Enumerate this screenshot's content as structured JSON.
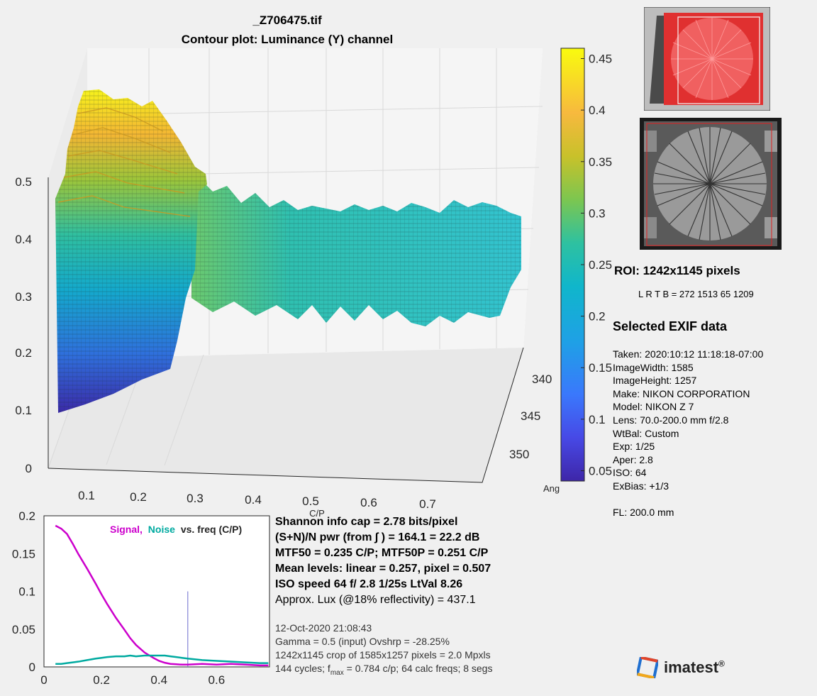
{
  "header": {
    "title": "_Z706475.tif",
    "subtitle": "Contour plot:  Luminance (Y) channel"
  },
  "surface_plot": {
    "z_ticks": [
      "0",
      "0.1",
      "0.2",
      "0.3",
      "0.4",
      "0.5"
    ],
    "x_ticks": [
      "0.1",
      "0.2",
      "0.3",
      "0.4",
      "0.5",
      "0.6",
      "0.7"
    ],
    "x_label": "C/P",
    "y_ticks": [
      "340",
      "345",
      "350"
    ],
    "y_label": "Angle",
    "y_label_sup": "o"
  },
  "colorbar": {
    "ticks": [
      "0.45",
      "0.4",
      "0.35",
      "0.3",
      "0.25",
      "0.2",
      "0.15",
      "0.1",
      "0.05"
    ],
    "range": [
      0.04,
      0.46
    ]
  },
  "signal_noise_plot": {
    "legend_signal": "Signal,",
    "legend_noise": "Noise",
    "legend_rest": "vs. freq (C/P)",
    "y_ticks": [
      "0.2",
      "0.15",
      "0.1",
      "0.05",
      "0"
    ],
    "x_ticks": [
      "0",
      "0.2",
      "0.4",
      "0.6"
    ],
    "signal_color": "#cc00cc",
    "noise_color": "#00aaa0"
  },
  "chart_data": [
    {
      "type": "line",
      "x": [
        0.04,
        0.06,
        0.08,
        0.1,
        0.12,
        0.15,
        0.18,
        0.2,
        0.22,
        0.25,
        0.28,
        0.3,
        0.32,
        0.35,
        0.38,
        0.4,
        0.42,
        0.44,
        0.46,
        0.48,
        0.5,
        0.55,
        0.6,
        0.65,
        0.7,
        0.75,
        0.78
      ],
      "series": [
        {
          "name": "Signal",
          "values": [
            0.187,
            0.183,
            0.176,
            0.163,
            0.149,
            0.13,
            0.11,
            0.096,
            0.083,
            0.065,
            0.049,
            0.038,
            0.029,
            0.019,
            0.012,
            0.008,
            0.0055,
            0.004,
            0.0035,
            0.003,
            0.003,
            0.004,
            0.003,
            0.004,
            0.003,
            0.002,
            0.002
          ]
        },
        {
          "name": "Noise",
          "values": [
            0.004,
            0.004,
            0.005,
            0.006,
            0.007,
            0.009,
            0.011,
            0.012,
            0.013,
            0.014,
            0.014,
            0.015,
            0.014,
            0.015,
            0.015,
            0.015,
            0.015,
            0.014,
            0.013,
            0.012,
            0.011,
            0.009,
            0.008,
            0.007,
            0.006,
            0.005,
            0.005
          ]
        }
      ],
      "title": "Signal, Noise vs. freq (C/P)",
      "xlim": [
        0,
        0.784
      ],
      "ylim": [
        0,
        0.2
      ],
      "marker_x": 0.5
    }
  ],
  "info": {
    "line1": "Shannon info cap =  2.78 bits/pixel",
    "line2": "(S+N)/N pwr (from ∫ ) = 164.1 = 22.2 dB",
    "line3": "MTF50 = 0.235 C/P;  MTF50P = 0.251 C/P",
    "line4": "Mean levels:  linear = 0.257,  pixel = 0.507",
    "line5": "ISO speed  64   f/ 2.8    1/25s   LtVal 8.26",
    "line6": "Approx. Lux (@18% reflectivity) = 437.1",
    "date": "12-Oct-2020 21:08:43",
    "gamma": "Gamma = 0.5 (input)  Ovshrp = -28.25%",
    "crop": "1242x1145 crop of 1585x1257 pixels = 2.0 Mpxls",
    "cycles_a": "144 cycles; f",
    "cycles_sub": "max",
    "cycles_b": " = 0.784 c/p;  64 calc freqs;  8 segs"
  },
  "roi": {
    "title": "ROI:  1242x1145 pixels",
    "lrtb": "L R  T B = 272  1513  65 1209"
  },
  "exif": {
    "title": "Selected EXIF data",
    "items": [
      "Taken: 2020:10:12 11:18:18-07:00",
      "ImageWidth:  1585",
      "ImageHeight:  1257",
      "Make:  NIKON CORPORATION",
      "Model: NIKON Z 7",
      "Lens:  70.0-200.0 mm f/2.8",
      "WtBal:  Custom",
      "Exp:   1/25",
      "Aper:  2.8",
      "ISO:   64",
      "ExBias:  +1/3",
      "",
      "FL:  200.0 mm"
    ]
  },
  "brand": {
    "name": "imatest",
    "mark": "®"
  }
}
